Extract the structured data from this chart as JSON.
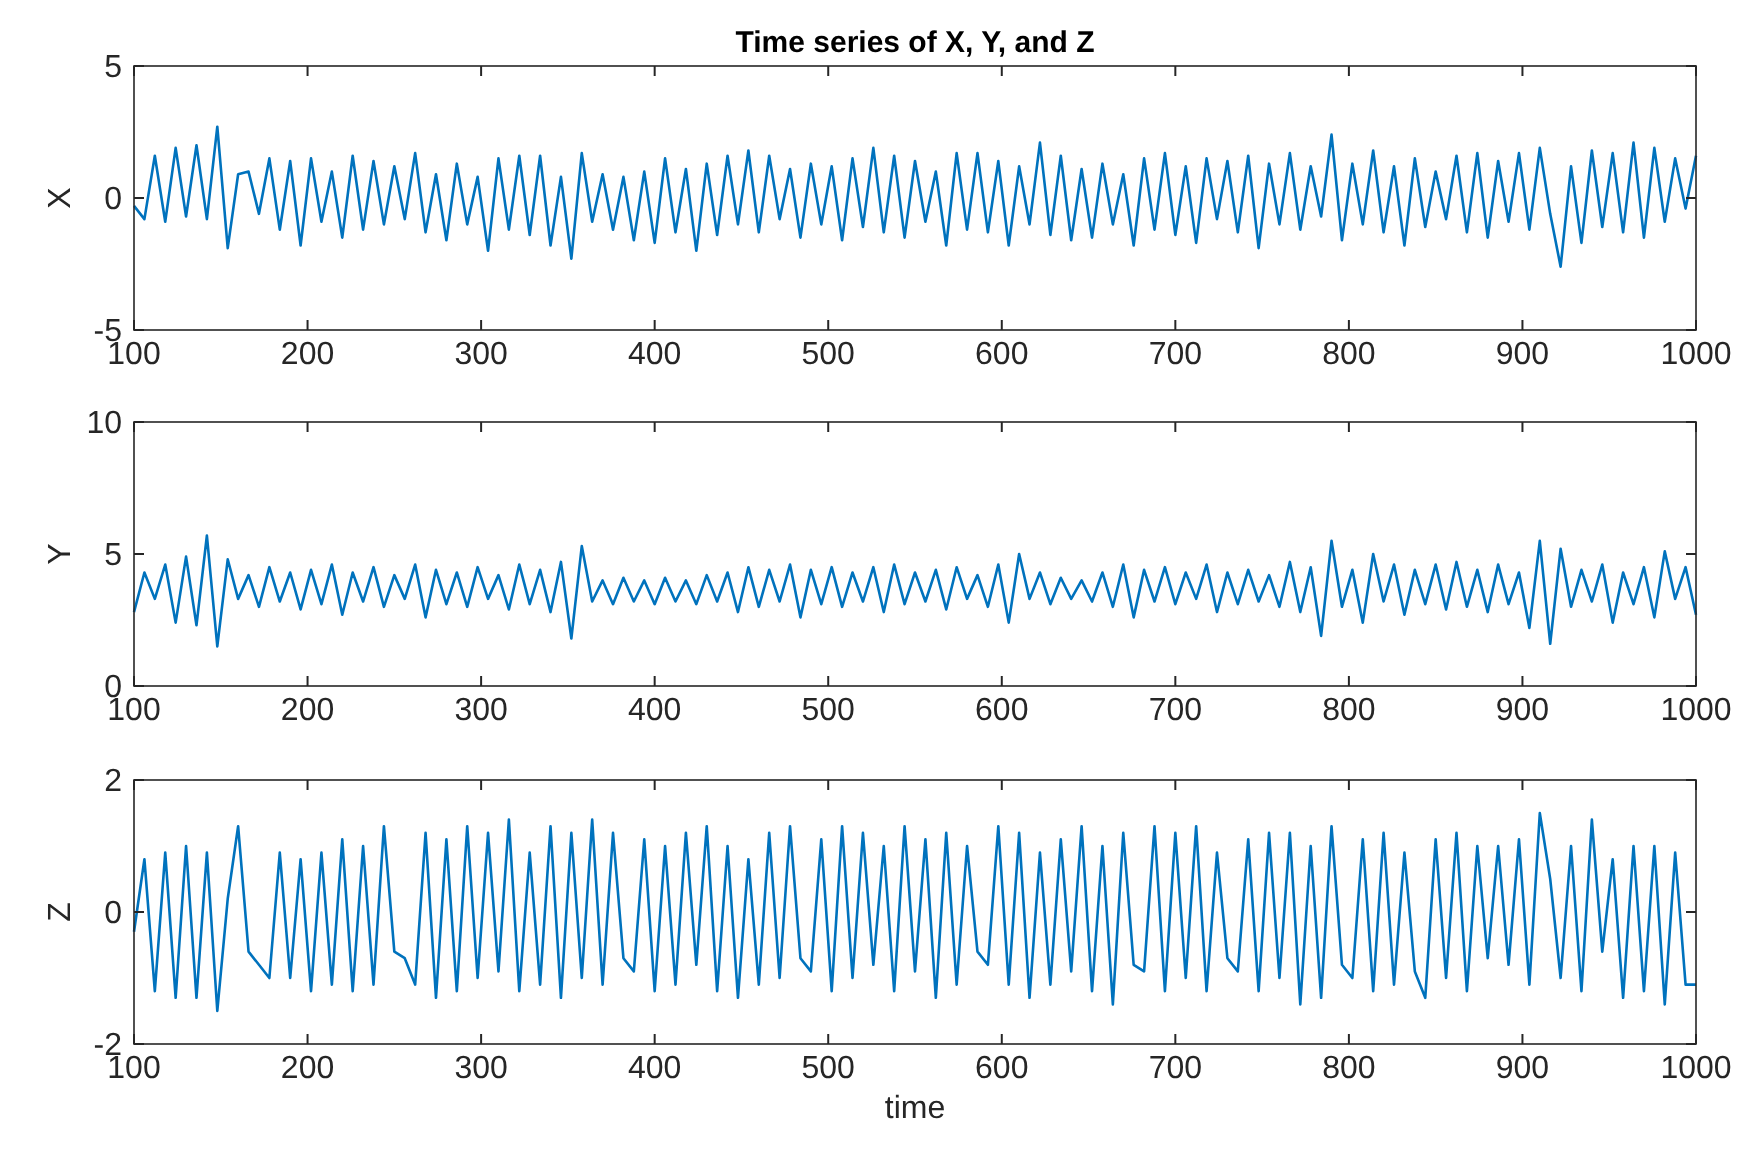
{
  "chart_data": [
    {
      "type": "line",
      "title": "Time series of X, Y, and Z",
      "ylabel": "X",
      "xlim": [
        100,
        1000
      ],
      "ylim": [
        -5,
        5
      ],
      "xticks": [
        100,
        200,
        300,
        400,
        500,
        600,
        700,
        800,
        900,
        1000
      ],
      "yticks": [
        -5,
        0,
        5
      ],
      "x": [
        100,
        106,
        112,
        118,
        124,
        130,
        136,
        142,
        148,
        154,
        160,
        166,
        172,
        178,
        184,
        190,
        196,
        202,
        208,
        214,
        220,
        226,
        232,
        238,
        244,
        250,
        256,
        262,
        268,
        274,
        280,
        286,
        292,
        298,
        304,
        310,
        316,
        322,
        328,
        334,
        340,
        346,
        352,
        358,
        364,
        370,
        376,
        382,
        388,
        394,
        400,
        406,
        412,
        418,
        424,
        430,
        436,
        442,
        448,
        454,
        460,
        466,
        472,
        478,
        484,
        490,
        496,
        502,
        508,
        514,
        520,
        526,
        532,
        538,
        544,
        550,
        556,
        562,
        568,
        574,
        580,
        586,
        592,
        598,
        604,
        610,
        616,
        622,
        628,
        634,
        640,
        646,
        652,
        658,
        664,
        670,
        676,
        682,
        688,
        694,
        700,
        706,
        712,
        718,
        724,
        730,
        736,
        742,
        748,
        754,
        760,
        766,
        772,
        778,
        784,
        790,
        796,
        802,
        808,
        814,
        820,
        826,
        832,
        838,
        844,
        850,
        856,
        862,
        868,
        874,
        880,
        886,
        892,
        898,
        904,
        910,
        916,
        922,
        928,
        934,
        940,
        946,
        952,
        958,
        964,
        970,
        976,
        982,
        988,
        994,
        1000
      ],
      "series": [
        {
          "color": "#0072bd",
          "values": [
            -0.3,
            -0.8,
            1.6,
            -0.9,
            1.9,
            -0.7,
            2.0,
            -0.8,
            2.7,
            -1.9,
            0.9,
            1.0,
            -0.6,
            1.5,
            -1.2,
            1.4,
            -1.8,
            1.5,
            -0.9,
            1.0,
            -1.5,
            1.6,
            -1.2,
            1.4,
            -1.0,
            1.2,
            -0.8,
            1.7,
            -1.3,
            0.9,
            -1.6,
            1.3,
            -1.0,
            0.8,
            -2.0,
            1.5,
            -1.2,
            1.6,
            -1.4,
            1.6,
            -1.8,
            0.8,
            -2.3,
            1.7,
            -0.9,
            0.9,
            -1.2,
            0.8,
            -1.6,
            1.0,
            -1.7,
            1.5,
            -1.3,
            1.1,
            -2.0,
            1.3,
            -1.4,
            1.6,
            -1.0,
            1.8,
            -1.3,
            1.6,
            -0.8,
            1.1,
            -1.5,
            1.3,
            -1.0,
            1.2,
            -1.6,
            1.5,
            -1.1,
            1.9,
            -1.3,
            1.6,
            -1.5,
            1.4,
            -0.9,
            1.0,
            -1.8,
            1.7,
            -1.2,
            1.7,
            -1.3,
            1.4,
            -1.8,
            1.2,
            -1.0,
            2.1,
            -1.4,
            1.6,
            -1.6,
            1.1,
            -1.5,
            1.3,
            -1.0,
            0.9,
            -1.8,
            1.5,
            -1.2,
            1.7,
            -1.4,
            1.2,
            -1.7,
            1.5,
            -0.8,
            1.4,
            -1.3,
            1.6,
            -1.9,
            1.3,
            -1.0,
            1.7,
            -1.2,
            1.2,
            -0.7,
            2.4,
            -1.6,
            1.3,
            -1.0,
            1.8,
            -1.3,
            1.2,
            -1.8,
            1.5,
            -1.1,
            1.0,
            -0.8,
            1.6,
            -1.3,
            1.7,
            -1.5,
            1.4,
            -0.9,
            1.7,
            -1.2,
            1.9,
            -0.6,
            -2.6,
            1.2,
            -1.7,
            1.8,
            -1.1,
            1.7,
            -1.3,
            2.1,
            -1.5,
            1.9,
            -0.9,
            1.5,
            -0.4,
            1.6
          ]
        }
      ]
    },
    {
      "type": "line",
      "ylabel": "Y",
      "xlim": [
        100,
        1000
      ],
      "ylim": [
        0,
        10
      ],
      "xticks": [
        100,
        200,
        300,
        400,
        500,
        600,
        700,
        800,
        900,
        1000
      ],
      "yticks": [
        0,
        5,
        10
      ],
      "x": [
        100,
        106,
        112,
        118,
        124,
        130,
        136,
        142,
        148,
        154,
        160,
        166,
        172,
        178,
        184,
        190,
        196,
        202,
        208,
        214,
        220,
        226,
        232,
        238,
        244,
        250,
        256,
        262,
        268,
        274,
        280,
        286,
        292,
        298,
        304,
        310,
        316,
        322,
        328,
        334,
        340,
        346,
        352,
        358,
        364,
        370,
        376,
        382,
        388,
        394,
        400,
        406,
        412,
        418,
        424,
        430,
        436,
        442,
        448,
        454,
        460,
        466,
        472,
        478,
        484,
        490,
        496,
        502,
        508,
        514,
        520,
        526,
        532,
        538,
        544,
        550,
        556,
        562,
        568,
        574,
        580,
        586,
        592,
        598,
        604,
        610,
        616,
        622,
        628,
        634,
        640,
        646,
        652,
        658,
        664,
        670,
        676,
        682,
        688,
        694,
        700,
        706,
        712,
        718,
        724,
        730,
        736,
        742,
        748,
        754,
        760,
        766,
        772,
        778,
        784,
        790,
        796,
        802,
        808,
        814,
        820,
        826,
        832,
        838,
        844,
        850,
        856,
        862,
        868,
        874,
        880,
        886,
        892,
        898,
        904,
        910,
        916,
        922,
        928,
        934,
        940,
        946,
        952,
        958,
        964,
        970,
        976,
        982,
        988,
        994,
        1000
      ],
      "series": [
        {
          "color": "#0072bd",
          "values": [
            2.8,
            4.3,
            3.3,
            4.6,
            2.4,
            4.9,
            2.3,
            5.7,
            1.5,
            4.8,
            3.3,
            4.2,
            3.0,
            4.5,
            3.2,
            4.3,
            2.9,
            4.4,
            3.1,
            4.6,
            2.7,
            4.3,
            3.2,
            4.5,
            3.0,
            4.2,
            3.3,
            4.6,
            2.6,
            4.4,
            3.1,
            4.3,
            3.0,
            4.5,
            3.3,
            4.2,
            2.9,
            4.6,
            3.1,
            4.4,
            2.8,
            4.7,
            1.8,
            5.3,
            3.2,
            4.0,
            3.1,
            4.1,
            3.2,
            4.0,
            3.1,
            4.1,
            3.2,
            4.0,
            3.1,
            4.2,
            3.2,
            4.3,
            2.8,
            4.5,
            3.0,
            4.4,
            3.2,
            4.6,
            2.6,
            4.4,
            3.1,
            4.5,
            3.0,
            4.3,
            3.2,
            4.5,
            2.8,
            4.6,
            3.1,
            4.3,
            3.2,
            4.4,
            2.9,
            4.5,
            3.3,
            4.2,
            3.0,
            4.6,
            2.4,
            5.0,
            3.3,
            4.3,
            3.1,
            4.1,
            3.3,
            4.0,
            3.2,
            4.3,
            3.0,
            4.6,
            2.6,
            4.4,
            3.2,
            4.5,
            3.1,
            4.3,
            3.3,
            4.6,
            2.8,
            4.3,
            3.1,
            4.4,
            3.2,
            4.2,
            3.0,
            4.7,
            2.8,
            4.5,
            1.9,
            5.5,
            3.0,
            4.4,
            2.4,
            5.0,
            3.2,
            4.6,
            2.7,
            4.4,
            3.1,
            4.6,
            2.9,
            4.7,
            3.0,
            4.4,
            2.8,
            4.6,
            3.1,
            4.3,
            2.2,
            5.5,
            1.6,
            5.2,
            3.0,
            4.4,
            3.2,
            4.6,
            2.4,
            4.3,
            3.1,
            4.5,
            2.6,
            5.1,
            3.3,
            4.5,
            2.7
          ]
        }
      ]
    },
    {
      "type": "line",
      "ylabel": "Z",
      "xlabel": "time",
      "xlim": [
        100,
        1000
      ],
      "ylim": [
        -2,
        2
      ],
      "xticks": [
        100,
        200,
        300,
        400,
        500,
        600,
        700,
        800,
        900,
        1000
      ],
      "yticks": [
        -2,
        0,
        2
      ],
      "x": [
        100,
        106,
        112,
        118,
        124,
        130,
        136,
        142,
        148,
        154,
        160,
        166,
        172,
        178,
        184,
        190,
        196,
        202,
        208,
        214,
        220,
        226,
        232,
        238,
        244,
        250,
        256,
        262,
        268,
        274,
        280,
        286,
        292,
        298,
        304,
        310,
        316,
        322,
        328,
        334,
        340,
        346,
        352,
        358,
        364,
        370,
        376,
        382,
        388,
        394,
        400,
        406,
        412,
        418,
        424,
        430,
        436,
        442,
        448,
        454,
        460,
        466,
        472,
        478,
        484,
        490,
        496,
        502,
        508,
        514,
        520,
        526,
        532,
        538,
        544,
        550,
        556,
        562,
        568,
        574,
        580,
        586,
        592,
        598,
        604,
        610,
        616,
        622,
        628,
        634,
        640,
        646,
        652,
        658,
        664,
        670,
        676,
        682,
        688,
        694,
        700,
        706,
        712,
        718,
        724,
        730,
        736,
        742,
        748,
        754,
        760,
        766,
        772,
        778,
        784,
        790,
        796,
        802,
        808,
        814,
        820,
        826,
        832,
        838,
        844,
        850,
        856,
        862,
        868,
        874,
        880,
        886,
        892,
        898,
        904,
        910,
        916,
        922,
        928,
        934,
        940,
        946,
        952,
        958,
        964,
        970,
        976,
        982,
        988,
        994,
        1000
      ],
      "series": [
        {
          "color": "#0072bd",
          "values": [
            -0.3,
            0.8,
            -1.2,
            0.9,
            -1.3,
            1.0,
            -1.3,
            0.9,
            -1.5,
            0.2,
            1.3,
            -0.6,
            -0.8,
            -1.0,
            0.9,
            -1.0,
            0.8,
            -1.2,
            0.9,
            -1.1,
            1.1,
            -1.2,
            1.0,
            -1.1,
            1.3,
            -0.6,
            -0.7,
            -1.1,
            1.2,
            -1.3,
            1.1,
            -1.2,
            1.3,
            -1.0,
            1.2,
            -0.9,
            1.4,
            -1.2,
            0.9,
            -1.1,
            1.3,
            -1.3,
            1.2,
            -1.0,
            1.4,
            -1.1,
            1.2,
            -0.7,
            -0.9,
            1.1,
            -1.2,
            1.0,
            -1.1,
            1.2,
            -0.8,
            1.3,
            -1.2,
            1.0,
            -1.3,
            0.8,
            -1.1,
            1.2,
            -1.0,
            1.3,
            -0.7,
            -0.9,
            1.1,
            -1.2,
            1.3,
            -1.0,
            1.2,
            -0.8,
            1.0,
            -1.2,
            1.3,
            -0.9,
            1.1,
            -1.3,
            1.2,
            -1.1,
            1.0,
            -0.6,
            -0.8,
            1.3,
            -1.1,
            1.2,
            -1.3,
            0.9,
            -1.1,
            1.1,
            -0.9,
            1.3,
            -1.2,
            1.0,
            -1.4,
            1.2,
            -0.8,
            -0.9,
            1.3,
            -1.2,
            1.2,
            -1.0,
            1.3,
            -1.2,
            0.9,
            -0.7,
            -0.9,
            1.1,
            -1.2,
            1.2,
            -1.0,
            1.2,
            -1.4,
            1.0,
            -1.3,
            1.3,
            -0.8,
            -1.0,
            1.1,
            -1.2,
            1.2,
            -1.1,
            0.9,
            -0.9,
            -1.3,
            1.1,
            -1.0,
            1.2,
            -1.2,
            1.0,
            -0.7,
            1.0,
            -0.8,
            1.1,
            -1.1,
            1.5,
            0.5,
            -1.0,
            1.0,
            -1.2,
            1.4,
            -0.6,
            0.8,
            -1.3,
            1.0,
            -1.2,
            1.0,
            -1.4,
            0.9,
            -1.1,
            -1.1
          ]
        }
      ]
    }
  ]
}
